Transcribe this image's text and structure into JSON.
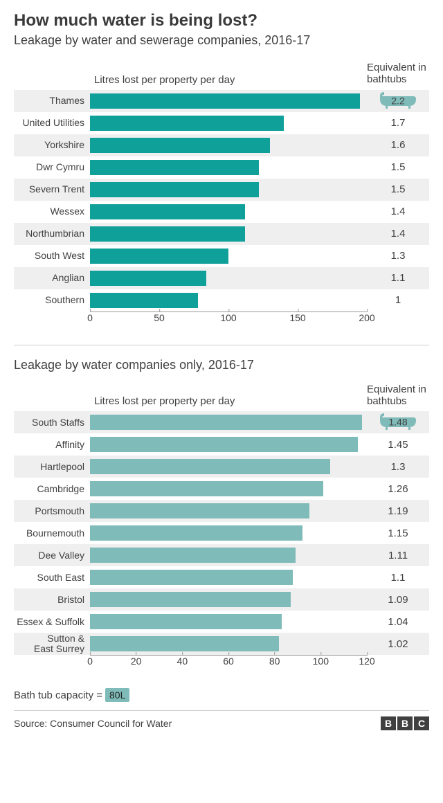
{
  "title": "How much water is being lost?",
  "subtitle": "Leakage by water and sewerage companies, 2016-17",
  "axis_label": "Litres lost per property per day",
  "bathtub_label": "Equivalent in bathtubs",
  "chart1": {
    "type": "bar-horizontal",
    "bar_color": "#0fa09a",
    "row_alt_bg": "#efefef",
    "xmax": 200,
    "ticks": [
      0,
      50,
      100,
      150,
      200
    ],
    "rows": [
      {
        "label": "Thames",
        "value": 195,
        "bathtubs": "2.2",
        "icon": true
      },
      {
        "label": "United Utilities",
        "value": 140,
        "bathtubs": "1.7"
      },
      {
        "label": "Yorkshire",
        "value": 130,
        "bathtubs": "1.6"
      },
      {
        "label": "Dwr Cymru",
        "value": 122,
        "bathtubs": "1.5"
      },
      {
        "label": "Severn Trent",
        "value": 122,
        "bathtubs": "1.5"
      },
      {
        "label": "Wessex",
        "value": 112,
        "bathtubs": "1.4"
      },
      {
        "label": "Northumbrian",
        "value": 112,
        "bathtubs": "1.4"
      },
      {
        "label": "South West",
        "value": 100,
        "bathtubs": "1.3"
      },
      {
        "label": "Anglian",
        "value": 84,
        "bathtubs": "1.1"
      },
      {
        "label": "Southern",
        "value": 78,
        "bathtubs": "1"
      }
    ]
  },
  "chart2_title": "Leakage by water companies only, 2016-17",
  "chart2": {
    "type": "bar-horizontal",
    "bar_color": "#7fbbb8",
    "row_alt_bg": "#efefef",
    "xmax": 120,
    "ticks": [
      0,
      20,
      40,
      60,
      80,
      100,
      120
    ],
    "rows": [
      {
        "label": "South Staffs",
        "value": 118,
        "bathtubs": "1.48",
        "icon": true
      },
      {
        "label": "Affinity",
        "value": 116,
        "bathtubs": "1.45"
      },
      {
        "label": "Hartlepool",
        "value": 104,
        "bathtubs": "1.3"
      },
      {
        "label": "Cambridge",
        "value": 101,
        "bathtubs": "1.26"
      },
      {
        "label": "Portsmouth",
        "value": 95,
        "bathtubs": "1.19"
      },
      {
        "label": "Bournemouth",
        "value": 92,
        "bathtubs": "1.15"
      },
      {
        "label": "Dee Valley",
        "value": 89,
        "bathtubs": "1.11"
      },
      {
        "label": "South East",
        "value": 88,
        "bathtubs": "1.1"
      },
      {
        "label": "Bristol",
        "value": 87,
        "bathtubs": "1.09"
      },
      {
        "label": "Essex & Suffolk",
        "value": 83,
        "bathtubs": "1.04"
      },
      {
        "label": "Sutton &\nEast Surrey",
        "value": 82,
        "bathtubs": "1.02"
      }
    ]
  },
  "footnote_label": "Bath tub capacity =",
  "footnote_value": "80L",
  "source": "Source: Consumer Council for Water",
  "logo": [
    "B",
    "B",
    "C"
  ],
  "colors": {
    "bathtub_icon": "#7fbbb8",
    "text": "#404040",
    "background": "#ffffff"
  }
}
